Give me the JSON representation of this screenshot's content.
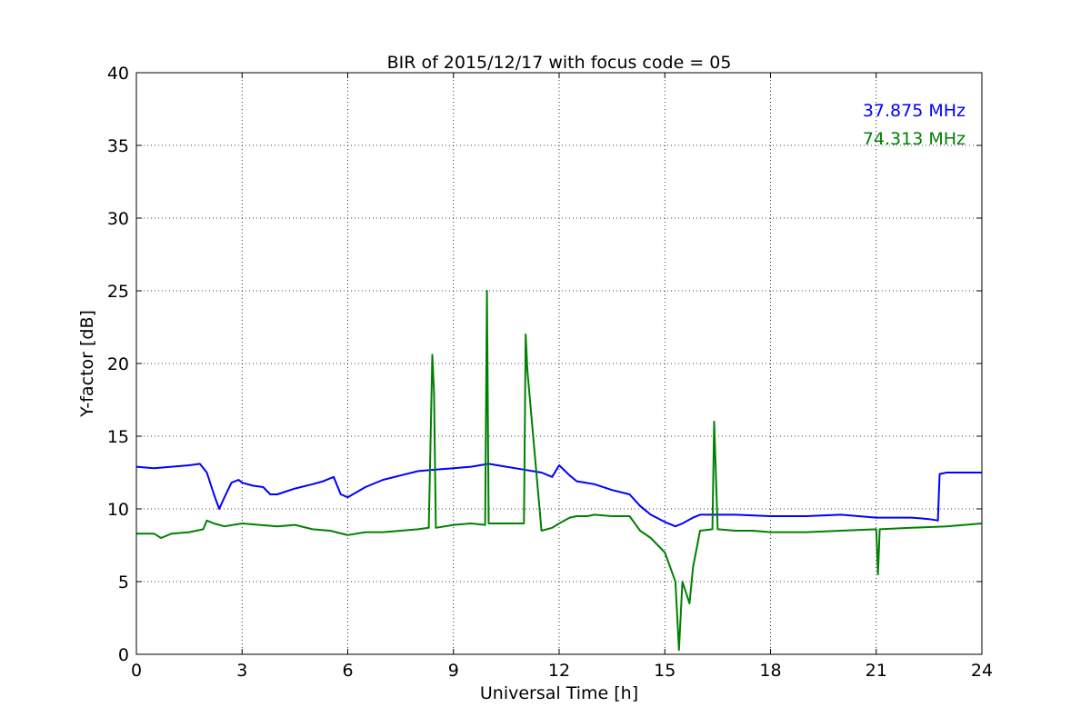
{
  "chart_data": {
    "type": "line",
    "title": "BIR of 2015/12/17 with focus code = 05",
    "xlabel": "Universal Time [h]",
    "ylabel": "Y-factor [dB]",
    "xlim": [
      0,
      24
    ],
    "ylim": [
      0,
      40
    ],
    "xticks": [
      0,
      3,
      6,
      9,
      12,
      15,
      18,
      21,
      24
    ],
    "yticks": [
      0,
      5,
      10,
      15,
      20,
      25,
      30,
      35,
      40
    ],
    "grid": true,
    "legend_position": "top-right",
    "series": [
      {
        "name": "37.875 MHz",
        "color": "#0000ff",
        "x": [
          0,
          0.5,
          1.0,
          1.5,
          1.8,
          2.0,
          2.2,
          2.35,
          2.5,
          2.7,
          2.9,
          3.0,
          3.3,
          3.6,
          3.8,
          4.0,
          4.5,
          5.0,
          5.3,
          5.6,
          5.8,
          6.0,
          6.5,
          7.0,
          7.5,
          8.0,
          8.5,
          9.0,
          9.5,
          10.0,
          10.5,
          11.0,
          11.5,
          11.8,
          12.0,
          12.3,
          12.5,
          13.0,
          13.5,
          14.0,
          14.3,
          14.6,
          15.0,
          15.3,
          15.5,
          15.8,
          16.0,
          16.5,
          17.0,
          18.0,
          19.0,
          20.0,
          21.0,
          21.5,
          22.0,
          22.5,
          22.75,
          22.8,
          23.0,
          23.5,
          24.0
        ],
        "y": [
          12.9,
          12.8,
          12.9,
          13.0,
          13.1,
          12.5,
          11.0,
          10.0,
          10.8,
          11.8,
          12.0,
          11.8,
          11.6,
          11.5,
          11.0,
          11.0,
          11.4,
          11.7,
          11.9,
          12.2,
          11.0,
          10.8,
          11.5,
          12.0,
          12.3,
          12.6,
          12.7,
          12.8,
          12.9,
          13.1,
          12.9,
          12.7,
          12.5,
          12.2,
          13.0,
          12.3,
          11.9,
          11.7,
          11.3,
          11.0,
          10.2,
          9.6,
          9.1,
          8.8,
          9.0,
          9.4,
          9.6,
          9.6,
          9.6,
          9.5,
          9.5,
          9.6,
          9.4,
          9.4,
          9.4,
          9.3,
          9.2,
          12.4,
          12.5,
          12.5,
          12.5
        ]
      },
      {
        "name": "74.313 MHz",
        "color": "#008000",
        "x": [
          0,
          0.5,
          0.7,
          1.0,
          1.5,
          1.9,
          2.0,
          2.2,
          2.5,
          3.0,
          3.5,
          4.0,
          4.5,
          5.0,
          5.5,
          6.0,
          6.5,
          7.0,
          7.5,
          8.0,
          8.3,
          8.4,
          8.45,
          8.5,
          9.0,
          9.5,
          9.9,
          9.95,
          10.0,
          10.5,
          11.0,
          11.05,
          11.1,
          11.5,
          11.8,
          12.0,
          12.3,
          12.5,
          12.8,
          13.0,
          13.5,
          14.0,
          14.3,
          14.6,
          15.0,
          15.3,
          15.4,
          15.5,
          15.7,
          15.8,
          16.0,
          16.35,
          16.4,
          16.5,
          17.0,
          17.5,
          18.0,
          19.0,
          20.0,
          21.0,
          21.05,
          21.1,
          22.0,
          23.0,
          24.0
        ],
        "y": [
          8.3,
          8.3,
          8.0,
          8.3,
          8.4,
          8.6,
          9.2,
          9.0,
          8.8,
          9.0,
          8.9,
          8.8,
          8.9,
          8.6,
          8.5,
          8.2,
          8.4,
          8.4,
          8.5,
          8.6,
          8.7,
          20.6,
          18.0,
          8.7,
          8.9,
          9.0,
          8.9,
          25.0,
          9.0,
          9.0,
          9.0,
          22.0,
          19.5,
          8.5,
          8.7,
          9.0,
          9.4,
          9.5,
          9.5,
          9.6,
          9.5,
          9.5,
          8.5,
          8.0,
          7.0,
          5.0,
          0.3,
          5.0,
          3.5,
          6.0,
          8.5,
          8.6,
          16.0,
          8.6,
          8.5,
          8.5,
          8.4,
          8.4,
          8.5,
          8.6,
          5.5,
          8.6,
          8.7,
          8.8,
          9.0
        ]
      }
    ]
  }
}
